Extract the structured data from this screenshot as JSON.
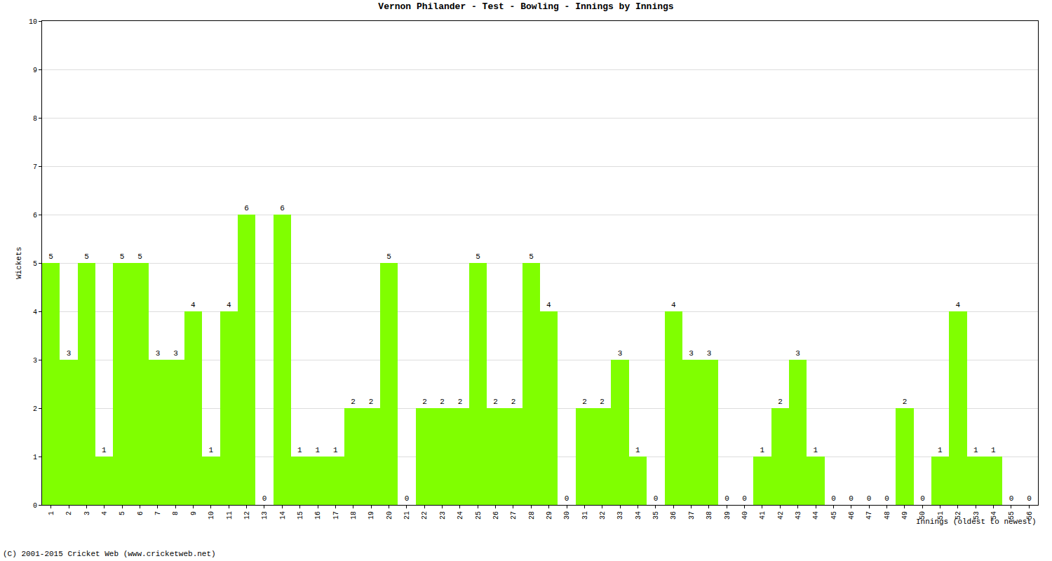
{
  "chart_data": {
    "type": "bar",
    "title": "Vernon Philander - Test - Bowling - Innings by Innings",
    "x_label": "Innings (oldest to newest)",
    "y_label": "Wickets",
    "source": "(C) 2001-2015 Cricket Web (www.cricketweb.net)",
    "categories": [
      "1",
      "2",
      "3",
      "4",
      "5",
      "6",
      "7",
      "8",
      "9",
      "10",
      "11",
      "12",
      "13",
      "14",
      "15",
      "16",
      "17",
      "18",
      "19",
      "20",
      "21",
      "22",
      "23",
      "24",
      "25",
      "26",
      "27",
      "28",
      "29",
      "30",
      "31",
      "32",
      "33",
      "34",
      "35",
      "36",
      "37",
      "38",
      "39",
      "40",
      "41",
      "42",
      "43",
      "44",
      "45",
      "46",
      "47",
      "48",
      "49",
      "50",
      "51",
      "52",
      "53",
      "54",
      "55",
      "56"
    ],
    "values": [
      5,
      3,
      5,
      1,
      5,
      5,
      3,
      3,
      4,
      1,
      4,
      6,
      0,
      6,
      1,
      1,
      1,
      2,
      2,
      5,
      0,
      2,
      2,
      2,
      5,
      2,
      2,
      5,
      4,
      0,
      2,
      2,
      3,
      1,
      0,
      4,
      3,
      3,
      0,
      0,
      1,
      2,
      3,
      1,
      0,
      0,
      0,
      0,
      2,
      0,
      1,
      4,
      1,
      1,
      0,
      0
    ],
    "color": "#80ff00",
    "ylim": [
      0,
      10
    ],
    "yticks": [
      0,
      1,
      2,
      3,
      4,
      5,
      6,
      7,
      8,
      9,
      10
    ],
    "grid": true,
    "data_labels": true
  }
}
